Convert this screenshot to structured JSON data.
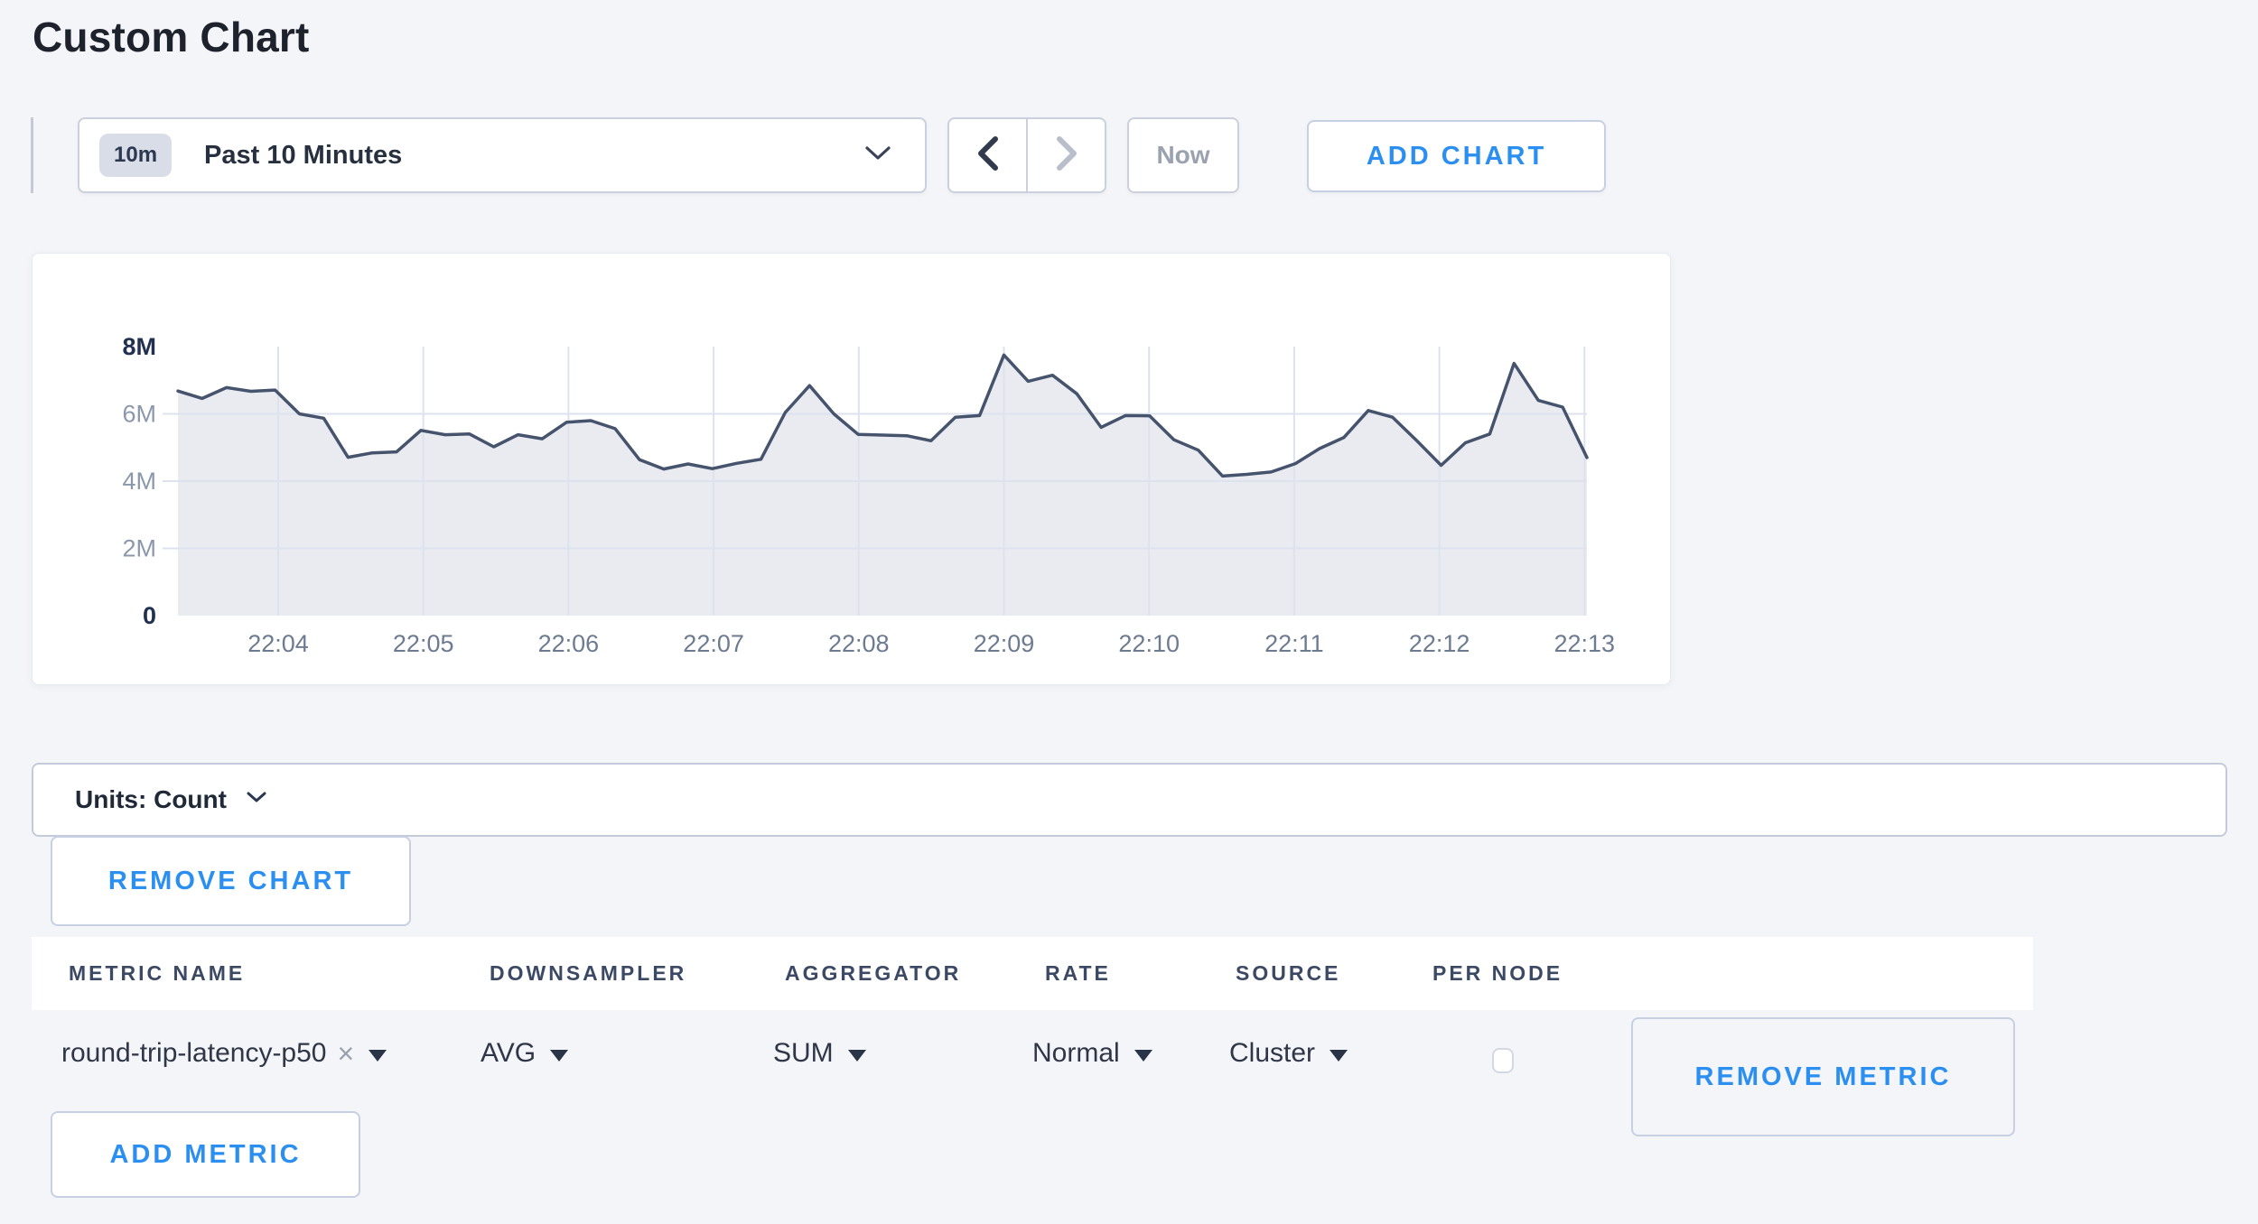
{
  "page": {
    "title": "Custom Chart",
    "accent_color": "#2b8ff2",
    "background_color": "#f4f5f8"
  },
  "toolbar": {
    "range_badge": "10m",
    "range_label": "Past 10 Minutes",
    "now_label": "Now",
    "add_chart_label": "ADD CHART"
  },
  "chart_data": {
    "type": "area",
    "title": "",
    "xlabel": "",
    "ylabel": "",
    "ylim": [
      0,
      8000000
    ],
    "grid": true,
    "legend": "none",
    "x_ticks": [
      "22:04",
      "22:05",
      "22:06",
      "22:07",
      "22:08",
      "22:09",
      "22:10",
      "22:11",
      "22:12",
      "22:13"
    ],
    "y_ticks": [
      {
        "label": "8M",
        "value": 8000000,
        "bold": true,
        "grid": false
      },
      {
        "label": "6M",
        "value": 6000000,
        "bold": false,
        "grid": true
      },
      {
        "label": "4M",
        "value": 4000000,
        "bold": false,
        "grid": true
      },
      {
        "label": "2M",
        "value": 2000000,
        "bold": false,
        "grid": true
      },
      {
        "label": "0",
        "value": 0,
        "bold": true,
        "grid": false
      }
    ],
    "series": [
      {
        "name": "round-trip-latency-p50",
        "values": [
          6680000,
          6460000,
          6780000,
          6670000,
          6710000,
          6000000,
          5870000,
          4710000,
          4840000,
          4870000,
          5510000,
          5380000,
          5400000,
          5020000,
          5380000,
          5260000,
          5750000,
          5800000,
          5560000,
          4640000,
          4360000,
          4510000,
          4370000,
          4530000,
          4650000,
          6040000,
          6840000,
          6000000,
          5390000,
          5370000,
          5350000,
          5200000,
          5900000,
          5950000,
          7750000,
          6970000,
          7150000,
          6600000,
          5600000,
          5950000,
          5940000,
          5230000,
          4920000,
          4150000,
          4200000,
          4270000,
          4520000,
          4970000,
          5300000,
          6100000,
          5900000,
          5200000,
          4470000,
          5140000,
          5400000,
          7500000,
          6400000,
          6200000,
          4700000
        ]
      }
    ],
    "colors": {
      "line": "#46536d",
      "fill": "#e9ebf1",
      "grid": "#dde3ee",
      "label_strong": "#223150",
      "label_minor": "#8b98ac",
      "x_label": "#6d7b91"
    }
  },
  "units_bar": {
    "label": "Units: Count"
  },
  "chart_actions": {
    "remove_chart_label": "REMOVE CHART",
    "add_metric_label": "ADD METRIC"
  },
  "metrics_table": {
    "headers": [
      "METRIC NAME",
      "DOWNSAMPLER",
      "AGGREGATOR",
      "RATE",
      "SOURCE",
      "PER NODE"
    ],
    "rows": [
      {
        "metric_name": "round-trip-latency-p50",
        "downsampler": "AVG",
        "aggregator": "SUM",
        "rate": "Normal",
        "source": "Cluster",
        "per_node_checked": false,
        "remove_label": "REMOVE METRIC"
      }
    ]
  }
}
